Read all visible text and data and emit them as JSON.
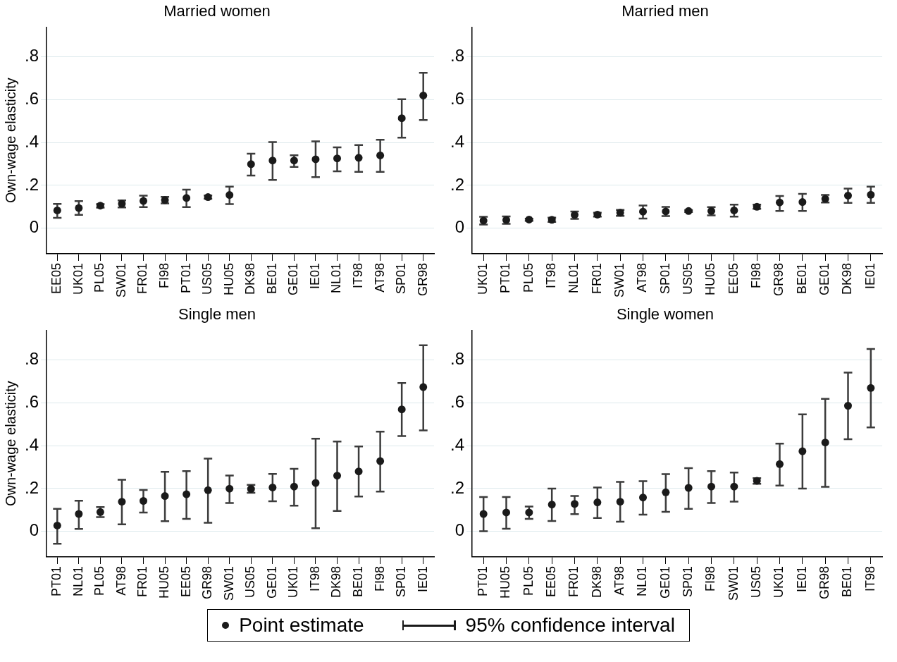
{
  "chart_data": [
    {
      "type": "scatter",
      "title": "Married women",
      "ylabel": "Own-wage elasticity",
      "categories": [
        "EE05",
        "UK01",
        "PL05",
        "SW01",
        "FR01",
        "FI98",
        "PT01",
        "US05",
        "HU05",
        "DK98",
        "BE01",
        "GE01",
        "IE01",
        "NL01",
        "IT98",
        "AT98",
        "SP01",
        "GR98"
      ],
      "series": [
        {
          "name": "Point estimate",
          "color": "#1a1a1a",
          "values": [
            0.083,
            0.094,
            0.105,
            0.114,
            0.127,
            0.131,
            0.141,
            0.145,
            0.155,
            0.299,
            0.316,
            0.316,
            0.322,
            0.326,
            0.329,
            0.34,
            0.514,
            0.62
          ],
          "errors": [
            [
              0.048,
              0.113
            ],
            [
              0.062,
              0.126
            ],
            [
              0.096,
              0.112
            ],
            [
              0.097,
              0.13
            ],
            [
              0.098,
              0.152
            ],
            [
              0.116,
              0.146
            ],
            [
              0.098,
              0.18
            ],
            [
              0.137,
              0.153
            ],
            [
              0.112,
              0.194
            ],
            [
              0.246,
              0.348
            ],
            [
              0.225,
              0.402
            ],
            [
              0.286,
              0.341
            ],
            [
              0.238,
              0.406
            ],
            [
              0.266,
              0.378
            ],
            [
              0.263,
              0.388
            ],
            [
              0.263,
              0.413
            ],
            [
              0.423,
              0.603
            ],
            [
              0.505,
              0.726
            ]
          ]
        }
      ],
      "ylim": [
        -0.12,
        0.94
      ],
      "yticks": [
        {
          "value": 0,
          "label": "0"
        },
        {
          "value": 0.2,
          "label": ".2"
        },
        {
          "value": 0.4,
          "label": ".4"
        },
        {
          "value": 0.6,
          "label": ".6"
        },
        {
          "value": 0.8,
          "label": ".8"
        }
      ],
      "grid": "y",
      "marker": "circle",
      "legend": "bottom",
      "annotations": [
        "95% confidence interval"
      ]
    },
    {
      "type": "scatter",
      "title": "Married men",
      "categories": [
        "UK01",
        "PT01",
        "PL05",
        "IT98",
        "NL01",
        "FR01",
        "SW01",
        "AT98",
        "SP01",
        "US05",
        "HU05",
        "EE05",
        "FI98",
        "GR98",
        "BE01",
        "GE01",
        "DK98",
        "IE01"
      ],
      "series": [
        {
          "color": "#1a1a1a",
          "values": [
            0.035,
            0.038,
            0.04,
            0.039,
            0.062,
            0.063,
            0.072,
            0.077,
            0.078,
            0.08,
            0.08,
            0.083,
            0.1,
            0.12,
            0.122,
            0.137,
            0.152,
            0.156
          ],
          "errors": [
            [
              0.017,
              0.053
            ],
            [
              0.02,
              0.055
            ],
            [
              0.034,
              0.044
            ],
            [
              0.029,
              0.049
            ],
            [
              0.043,
              0.078
            ],
            [
              0.054,
              0.072
            ],
            [
              0.057,
              0.085
            ],
            [
              0.045,
              0.106
            ],
            [
              0.056,
              0.099
            ],
            [
              0.075,
              0.084
            ],
            [
              0.06,
              0.098
            ],
            [
              0.054,
              0.11
            ],
            [
              0.09,
              0.11
            ],
            [
              0.08,
              0.15
            ],
            [
              0.08,
              0.16
            ],
            [
              0.12,
              0.155
            ],
            [
              0.118,
              0.185
            ],
            [
              0.118,
              0.194
            ]
          ]
        }
      ],
      "ylim": [
        -0.12,
        0.94
      ],
      "yticks": [
        {
          "value": 0,
          "label": "0"
        },
        {
          "value": 0.2,
          "label": ".2"
        },
        {
          "value": 0.4,
          "label": ".4"
        },
        {
          "value": 0.6,
          "label": ".6"
        },
        {
          "value": 0.8,
          "label": ".8"
        }
      ],
      "grid": "y",
      "marker": "circle"
    },
    {
      "type": "scatter",
      "title": "Single men",
      "ylabel": "Own-wage elasticity",
      "categories": [
        "PT01",
        "NL01",
        "PL05",
        "AT98",
        "FR01",
        "HU05",
        "EE05",
        "GR98",
        "SW01",
        "US05",
        "GE01",
        "UK01",
        "IT98",
        "DK98",
        "BE01",
        "FI98",
        "SP01",
        "IE01"
      ],
      "series": [
        {
          "color": "#1a1a1a",
          "values": [
            0.027,
            0.081,
            0.09,
            0.138,
            0.142,
            0.165,
            0.173,
            0.192,
            0.199,
            0.198,
            0.205,
            0.209,
            0.226,
            0.26,
            0.28,
            0.328,
            0.57,
            0.674
          ],
          "errors": [
            [
              -0.058,
              0.105
            ],
            [
              0.011,
              0.143
            ],
            [
              0.066,
              0.113
            ],
            [
              0.032,
              0.241
            ],
            [
              0.088,
              0.193
            ],
            [
              0.047,
              0.278
            ],
            [
              0.058,
              0.281
            ],
            [
              0.04,
              0.34
            ],
            [
              0.132,
              0.261
            ],
            [
              0.18,
              0.217
            ],
            [
              0.14,
              0.268
            ],
            [
              0.12,
              0.292
            ],
            [
              0.014,
              0.433
            ],
            [
              0.095,
              0.42
            ],
            [
              0.163,
              0.397
            ],
            [
              0.186,
              0.466
            ],
            [
              0.445,
              0.693
            ],
            [
              0.472,
              0.87
            ]
          ]
        }
      ],
      "ylim": [
        -0.12,
        0.94
      ],
      "yticks": [
        {
          "value": 0,
          "label": "0"
        },
        {
          "value": 0.2,
          "label": ".2"
        },
        {
          "value": 0.4,
          "label": ".4"
        },
        {
          "value": 0.6,
          "label": ".6"
        },
        {
          "value": 0.8,
          "label": ".8"
        }
      ],
      "grid": "y",
      "marker": "circle"
    },
    {
      "type": "scatter",
      "title": "Single women",
      "categories": [
        "PT01",
        "HU05",
        "PL05",
        "EE05",
        "FR01",
        "DK98",
        "AT98",
        "NL01",
        "GE01",
        "SP01",
        "FI98",
        "SW01",
        "US05",
        "UK01",
        "IE01",
        "GR98",
        "BE01",
        "IT98"
      ],
      "series": [
        {
          "color": "#1a1a1a",
          "values": [
            0.081,
            0.088,
            0.088,
            0.125,
            0.128,
            0.135,
            0.138,
            0.158,
            0.182,
            0.203,
            0.209,
            0.209,
            0.236,
            0.314,
            0.374,
            0.415,
            0.587,
            0.67
          ],
          "errors": [
            [
              0,
              0.16
            ],
            [
              0.012,
              0.16
            ],
            [
              0.058,
              0.116
            ],
            [
              0.048,
              0.2
            ],
            [
              0.08,
              0.165
            ],
            [
              0.062,
              0.205
            ],
            [
              0.045,
              0.231
            ],
            [
              0.078,
              0.234
            ],
            [
              0.091,
              0.267
            ],
            [
              0.105,
              0.295
            ],
            [
              0.132,
              0.281
            ],
            [
              0.139,
              0.275
            ],
            [
              0.222,
              0.248
            ],
            [
              0.214,
              0.41
            ],
            [
              0.2,
              0.547
            ],
            [
              0.208,
              0.619
            ],
            [
              0.43,
              0.742
            ],
            [
              0.486,
              0.852
            ]
          ]
        }
      ],
      "ylim": [
        -0.12,
        0.94
      ],
      "yticks": [
        {
          "value": 0,
          "label": "0"
        },
        {
          "value": 0.2,
          "label": ".2"
        },
        {
          "value": 0.4,
          "label": ".4"
        },
        {
          "value": 0.6,
          "label": ".6"
        },
        {
          "value": 0.8,
          "label": ".8"
        }
      ],
      "grid": "y",
      "marker": "circle"
    }
  ]
}
